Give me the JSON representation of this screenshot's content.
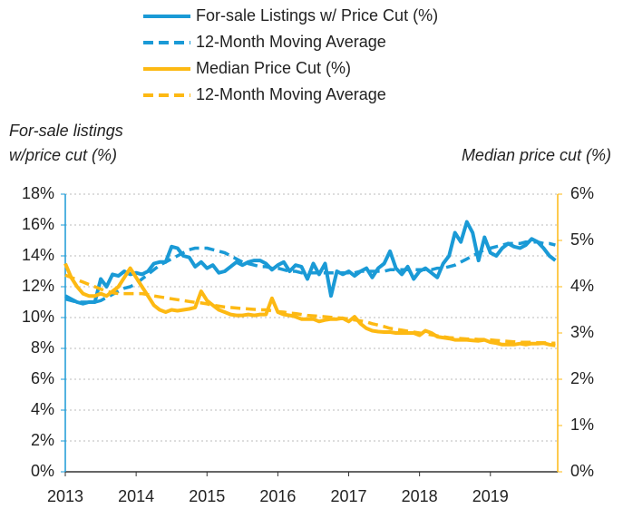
{
  "chart_data": {
    "type": "line",
    "y_label": [
      "For-sale listings",
      "w/price cut (%)"
    ],
    "y2_label": "Median price cut (%)",
    "legend": "top",
    "grid": true,
    "x": [
      2013,
      2013.083,
      2013.167,
      2013.25,
      2013.333,
      2013.417,
      2013.5,
      2013.583,
      2013.667,
      2013.75,
      2013.833,
      2013.917,
      2014,
      2014.083,
      2014.167,
      2014.25,
      2014.333,
      2014.417,
      2014.5,
      2014.583,
      2014.667,
      2014.75,
      2014.833,
      2014.917,
      2015,
      2015.083,
      2015.167,
      2015.25,
      2015.333,
      2015.417,
      2015.5,
      2015.583,
      2015.667,
      2015.75,
      2015.833,
      2015.917,
      2016,
      2016.083,
      2016.167,
      2016.25,
      2016.333,
      2016.417,
      2016.5,
      2016.583,
      2016.667,
      2016.75,
      2016.833,
      2016.917,
      2017,
      2017.083,
      2017.167,
      2017.25,
      2017.333,
      2017.417,
      2017.5,
      2017.583,
      2017.667,
      2017.75,
      2017.833,
      2017.917,
      2018,
      2018.083,
      2018.167,
      2018.25,
      2018.333,
      2018.417,
      2018.5,
      2018.583,
      2018.667,
      2018.75,
      2018.833,
      2018.917,
      2019,
      2019.083,
      2019.167,
      2019.25,
      2019.333,
      2019.417,
      2019.5,
      2019.583,
      2019.667,
      2019.75,
      2019.833,
      2019.917
    ],
    "xlim": [
      2013,
      2019.95
    ],
    "xticks": [
      2013,
      2014,
      2015,
      2016,
      2017,
      2018,
      2019
    ],
    "ylim": [
      0,
      18
    ],
    "yticks": [
      {
        "value": 0,
        "label": "0%"
      },
      {
        "value": 2,
        "label": "2%"
      },
      {
        "value": 4,
        "label": "4%"
      },
      {
        "value": 6,
        "label": "6%"
      },
      {
        "value": 8,
        "label": "8%"
      },
      {
        "value": 10,
        "label": "10%"
      },
      {
        "value": 12,
        "label": "12%"
      },
      {
        "value": 14,
        "label": "14%"
      },
      {
        "value": 16,
        "label": "16%"
      },
      {
        "value": 18,
        "label": "18%"
      }
    ],
    "y2lim": [
      0,
      6
    ],
    "y2ticks": [
      {
        "value": 0,
        "label": "0%"
      },
      {
        "value": 1,
        "label": "1%"
      },
      {
        "value": 2,
        "label": "2%"
      },
      {
        "value": 3,
        "label": "3%"
      },
      {
        "value": 4,
        "label": "4%"
      },
      {
        "value": 5,
        "label": "5%"
      },
      {
        "value": 6,
        "label": "6%"
      }
    ],
    "series": [
      {
        "name": "For-sale Listings w/ Price Cut (%)",
        "color": "#1a9ad6",
        "dashed": false,
        "axis": "y",
        "values": [
          11.4,
          11.2,
          11.0,
          10.9,
          11.0,
          11.0,
          12.5,
          12.0,
          12.8,
          12.7,
          13.0,
          12.8,
          12.9,
          12.8,
          13.0,
          13.5,
          13.6,
          13.6,
          14.6,
          14.5,
          14.0,
          13.9,
          13.3,
          13.6,
          13.2,
          13.4,
          12.9,
          13.0,
          13.3,
          13.6,
          13.4,
          13.6,
          13.7,
          13.7,
          13.5,
          13.1,
          13.4,
          13.6,
          13.0,
          13.4,
          13.3,
          12.5,
          13.5,
          12.8,
          13.5,
          11.4,
          13.0,
          12.8,
          13.0,
          12.7,
          13.0,
          13.2,
          12.6,
          13.2,
          13.5,
          14.3,
          13.2,
          12.8,
          13.3,
          12.5,
          13.0,
          13.2,
          12.9,
          12.6,
          13.5,
          14.0,
          15.5,
          14.9,
          16.2,
          15.5,
          13.7,
          15.2,
          14.2,
          14.0,
          14.5,
          14.8,
          14.6,
          14.5,
          14.7,
          15.1,
          14.9,
          14.5,
          14.0,
          13.7
        ]
      },
      {
        "name": "12-Month Moving Average",
        "color": "#1a9ad6",
        "dashed": true,
        "axis": "y",
        "values": [
          11.2,
          11.1,
          11.0,
          11.0,
          11.0,
          11.0,
          11.1,
          11.3,
          11.5,
          11.7,
          11.9,
          12.0,
          12.2,
          12.5,
          12.8,
          13.1,
          13.4,
          13.6,
          13.8,
          14.0,
          14.2,
          14.4,
          14.5,
          14.5,
          14.5,
          14.4,
          14.3,
          14.2,
          14.0,
          13.8,
          13.6,
          13.5,
          13.4,
          13.3,
          13.3,
          13.2,
          13.2,
          13.1,
          13.0,
          13.0,
          12.9,
          12.9,
          12.9,
          12.9,
          12.9,
          12.9,
          12.9,
          12.9,
          12.9,
          12.9,
          13.0,
          13.0,
          13.0,
          13.0,
          13.0,
          13.1,
          13.1,
          13.1,
          13.1,
          13.1,
          13.1,
          13.1,
          13.1,
          13.2,
          13.2,
          13.3,
          13.4,
          13.6,
          13.8,
          14.0,
          14.2,
          14.4,
          14.5,
          14.6,
          14.7,
          14.8,
          14.8,
          14.8,
          14.9,
          14.9,
          14.9,
          14.8,
          14.8,
          14.7
        ]
      },
      {
        "name": "Median Price Cut (%)",
        "color": "#fdb913",
        "dashed": false,
        "axis": "y2",
        "values": [
          4.5,
          4.2,
          4.0,
          3.85,
          3.8,
          3.8,
          3.85,
          3.8,
          3.9,
          4.0,
          4.2,
          4.4,
          4.2,
          4.0,
          3.8,
          3.6,
          3.5,
          3.45,
          3.5,
          3.48,
          3.5,
          3.52,
          3.55,
          3.9,
          3.7,
          3.6,
          3.5,
          3.45,
          3.4,
          3.38,
          3.38,
          3.4,
          3.38,
          3.4,
          3.4,
          3.75,
          3.45,
          3.4,
          3.38,
          3.35,
          3.3,
          3.3,
          3.3,
          3.25,
          3.28,
          3.3,
          3.3,
          3.32,
          3.25,
          3.35,
          3.2,
          3.1,
          3.05,
          3.03,
          3.02,
          3.02,
          3.0,
          3.0,
          3.0,
          3.0,
          2.95,
          3.05,
          3.0,
          2.92,
          2.9,
          2.88,
          2.85,
          2.85,
          2.85,
          2.84,
          2.83,
          2.85,
          2.8,
          2.78,
          2.75,
          2.75,
          2.75,
          2.77,
          2.75,
          2.77,
          2.77,
          2.78,
          2.75,
          2.73
        ]
      },
      {
        "name": "12-Month Moving Average",
        "color": "#fdb913",
        "dashed": true,
        "axis": "y2",
        "values": [
          4.25,
          4.2,
          4.15,
          4.1,
          4.05,
          4.0,
          3.95,
          3.9,
          3.87,
          3.85,
          3.85,
          3.85,
          3.85,
          3.85,
          3.83,
          3.8,
          3.78,
          3.76,
          3.74,
          3.72,
          3.7,
          3.68,
          3.66,
          3.65,
          3.63,
          3.6,
          3.58,
          3.56,
          3.55,
          3.54,
          3.53,
          3.52,
          3.51,
          3.5,
          3.5,
          3.48,
          3.46,
          3.45,
          3.43,
          3.42,
          3.4,
          3.38,
          3.37,
          3.36,
          3.35,
          3.34,
          3.33,
          3.32,
          3.3,
          3.28,
          3.26,
          3.24,
          3.2,
          3.17,
          3.14,
          3.1,
          3.08,
          3.06,
          3.04,
          3.02,
          3.0,
          2.98,
          2.96,
          2.94,
          2.92,
          2.9,
          2.89,
          2.88,
          2.87,
          2.87,
          2.86,
          2.86,
          2.85,
          2.84,
          2.83,
          2.82,
          2.81,
          2.8,
          2.8,
          2.8,
          2.79,
          2.79,
          2.78,
          2.78
        ]
      }
    ]
  }
}
